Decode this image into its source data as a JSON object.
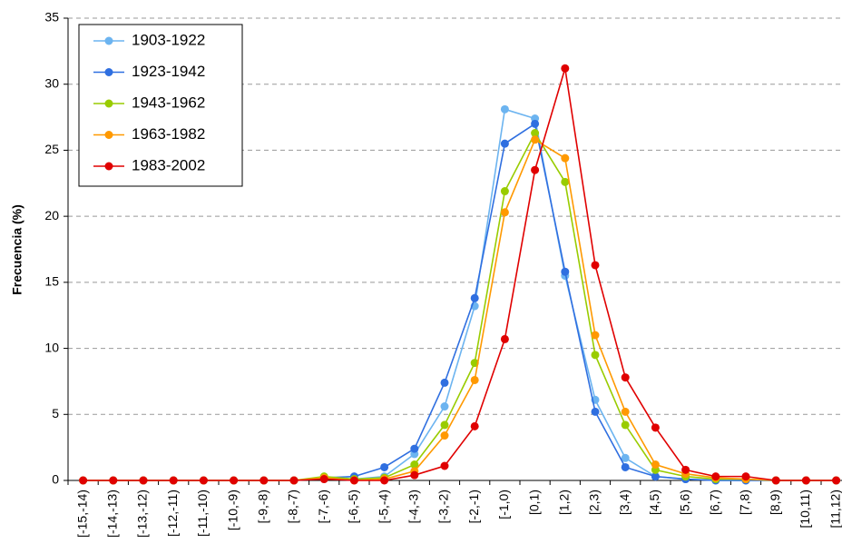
{
  "chart_data": {
    "type": "line",
    "ylabel": "Frecuencia (%)",
    "categories": [
      "[-15,-14)",
      "[-14,-13)",
      "[-13,-12)",
      "[-12,-11)",
      "[-11,-10)",
      "[-10,-9)",
      "[-9,-8)",
      "[-8,-7)",
      "[-7,-6)",
      "[-6,-5)",
      "[-5,-4)",
      "[-4,-3)",
      "[-3,-2)",
      "[-2,-1)",
      "[-1,0)",
      "[0,1)",
      "[1,2)",
      "[2,3)",
      "[3,4)",
      "[4,5)",
      "[5,6)",
      "[6,7)",
      "[7,8)",
      "[8,9)",
      "[10,11)",
      "[11,12)"
    ],
    "series": [
      {
        "name": "1903-1922",
        "color": "#6cb4f0",
        "values": [
          0,
          0,
          0,
          0,
          0,
          0,
          0,
          0,
          0.2,
          0.1,
          0.3,
          2.0,
          5.6,
          13.2,
          28.1,
          27.4,
          15.5,
          6.1,
          1.7,
          0.3,
          0.1,
          0,
          0,
          0,
          0,
          0
        ]
      },
      {
        "name": "1923-1942",
        "color": "#2f6fe0",
        "values": [
          0,
          0,
          0,
          0,
          0,
          0,
          0,
          0,
          0.2,
          0.3,
          1.0,
          2.4,
          7.4,
          13.8,
          25.5,
          27.0,
          15.8,
          5.2,
          1.0,
          0.3,
          0.1,
          0,
          0,
          0,
          0,
          0
        ]
      },
      {
        "name": "1943-1962",
        "color": "#99cc00",
        "values": [
          0,
          0,
          0,
          0,
          0,
          0,
          0,
          0,
          0.3,
          0.1,
          0.2,
          1.2,
          4.2,
          8.9,
          21.9,
          26.3,
          22.6,
          9.5,
          4.2,
          0.8,
          0.3,
          0.1,
          0.1,
          0,
          0,
          0
        ]
      },
      {
        "name": "1963-1982",
        "color": "#ff9900",
        "values": [
          0,
          0,
          0,
          0,
          0,
          0,
          0,
          0,
          0.2,
          0,
          0.1,
          0.7,
          3.4,
          7.6,
          20.3,
          25.8,
          24.4,
          11.0,
          5.2,
          1.2,
          0.5,
          0.2,
          0.1,
          0,
          0,
          0
        ]
      },
      {
        "name": "1983-2002",
        "color": "#e00000",
        "values": [
          0,
          0,
          0,
          0,
          0,
          0,
          0,
          0,
          0.1,
          0,
          0,
          0.4,
          1.1,
          4.1,
          10.7,
          23.5,
          31.2,
          16.3,
          7.8,
          4.0,
          0.8,
          0.3,
          0.3,
          0,
          0,
          0
        ]
      }
    ],
    "ylim": [
      0,
      35
    ],
    "yticks": [
      0,
      5,
      10,
      15,
      20,
      25,
      30,
      35
    ],
    "grid": true,
    "legend": "upper left"
  }
}
